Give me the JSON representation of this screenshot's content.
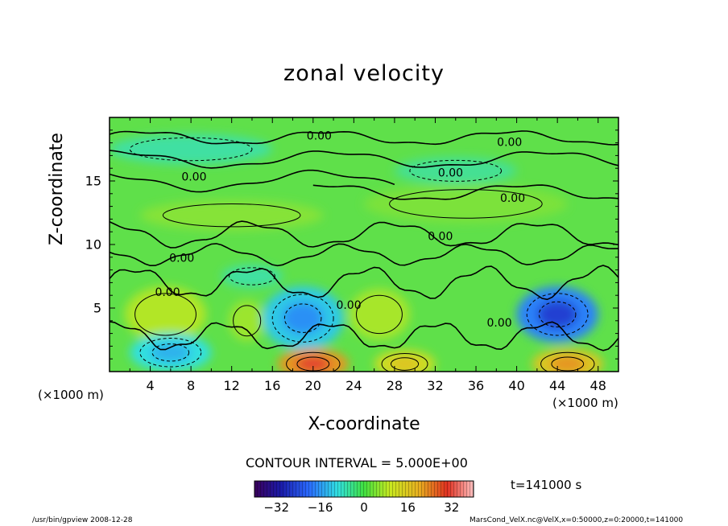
{
  "chart_data": {
    "type": "heatmap",
    "title": "zonal velocity",
    "xlabel": "X-coordinate",
    "ylabel": "Z-coordinate",
    "x_unit_left": "(×1000 m)",
    "x_unit_right": "(×1000 m)",
    "xlim": [
      0,
      50
    ],
    "ylim": [
      0,
      20
    ],
    "x_ticks": [
      "4",
      "8",
      "12",
      "16",
      "20",
      "24",
      "28",
      "32",
      "36",
      "40",
      "44",
      "48"
    ],
    "y_ticks": [
      "5",
      "10",
      "15"
    ],
    "contour_label": "0.00",
    "contour_interval": "CONTOUR INTERVAL = 5.000E+00",
    "time_label": "t=141000 s",
    "colorbar": {
      "range": [
        -40,
        40
      ],
      "ticks": [
        "−32",
        "−16",
        "0",
        "16",
        "32"
      ],
      "tick_values": [
        -32,
        -16,
        0,
        16,
        32
      ]
    },
    "field_features": [
      {
        "x": 5.5,
        "z": 4.5,
        "value": 8,
        "rx": 4,
        "rz": 2.2
      },
      {
        "x": 13.5,
        "z": 4,
        "value": 6,
        "rx": 1.8,
        "rz": 1.6
      },
      {
        "x": 19,
        "z": 4.2,
        "value": -12,
        "rx": 4,
        "rz": 2.5
      },
      {
        "x": 26.5,
        "z": 4.5,
        "value": 7,
        "rx": 3,
        "rz": 2
      },
      {
        "x": 44,
        "z": 4.5,
        "value": -18,
        "rx": 4,
        "rz": 2.2
      },
      {
        "x": 20,
        "z": 0.6,
        "value": 22,
        "rx": 3.5,
        "rz": 1.2
      },
      {
        "x": 29,
        "z": 0.6,
        "value": 12,
        "rx": 3,
        "rz": 1.1
      },
      {
        "x": 45,
        "z": 0.6,
        "value": 16,
        "rx": 3.5,
        "rz": 1.2
      },
      {
        "x": 6,
        "z": 1.5,
        "value": -10,
        "rx": 4,
        "rz": 1.5
      },
      {
        "x": 8,
        "z": 17.5,
        "value": -6,
        "rx": 8,
        "rz": 1.2
      },
      {
        "x": 34,
        "z": 15.8,
        "value": -5,
        "rx": 6,
        "rz": 1.1
      },
      {
        "x": 35,
        "z": 13.2,
        "value": 3,
        "rx": 10,
        "rz": 1.5
      },
      {
        "x": 12,
        "z": 12.3,
        "value": 4,
        "rx": 9,
        "rz": 1.2
      },
      {
        "x": 14,
        "z": 7.5,
        "value": -6,
        "rx": 3,
        "rz": 0.9
      }
    ],
    "contour_labels": [
      {
        "x": 20.6,
        "z": 18.5
      },
      {
        "x": 39.3,
        "z": 18.0
      },
      {
        "x": 8.3,
        "z": 15.3
      },
      {
        "x": 33.5,
        "z": 15.6
      },
      {
        "x": 39.6,
        "z": 13.6
      },
      {
        "x": 32.5,
        "z": 10.6
      },
      {
        "x": 7.1,
        "z": 8.9
      },
      {
        "x": 5.7,
        "z": 6.2
      },
      {
        "x": 23.5,
        "z": 5.2
      },
      {
        "x": 38.3,
        "z": 3.8
      }
    ]
  },
  "footer": {
    "left": "/usr/bin/gpview   2008-12-28",
    "right": "MarsCond_VelX.nc@VelX,x=0:50000,z=0:20000,t=141000"
  }
}
